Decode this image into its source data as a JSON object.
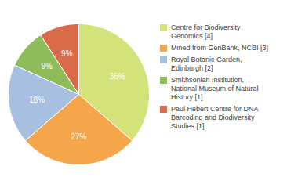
{
  "chart_data": {
    "type": "pie",
    "categories": [
      "Centre for Biodiversity\nGenomics [4]",
      "Mined from GenBank, NCBI [3]",
      "Royal Botanic Garden,\nEdinburgh [2]",
      "Smithsonian Institution,\nNational Museum of Natural\nHistory [1]",
      "Paul Hebert Centre for DNA\nBarcoding and Biodiversity\nStudies [1]"
    ],
    "values": [
      36,
      27,
      18,
      9,
      9
    ],
    "value_labels": [
      "36%",
      "27%",
      "18%",
      "9%",
      "9%"
    ],
    "colors": [
      "#d4e27a",
      "#f5a54a",
      "#a8c0e0",
      "#8fbc5a",
      "#d96b4a"
    ],
    "data_labels": true,
    "legend": "right"
  }
}
